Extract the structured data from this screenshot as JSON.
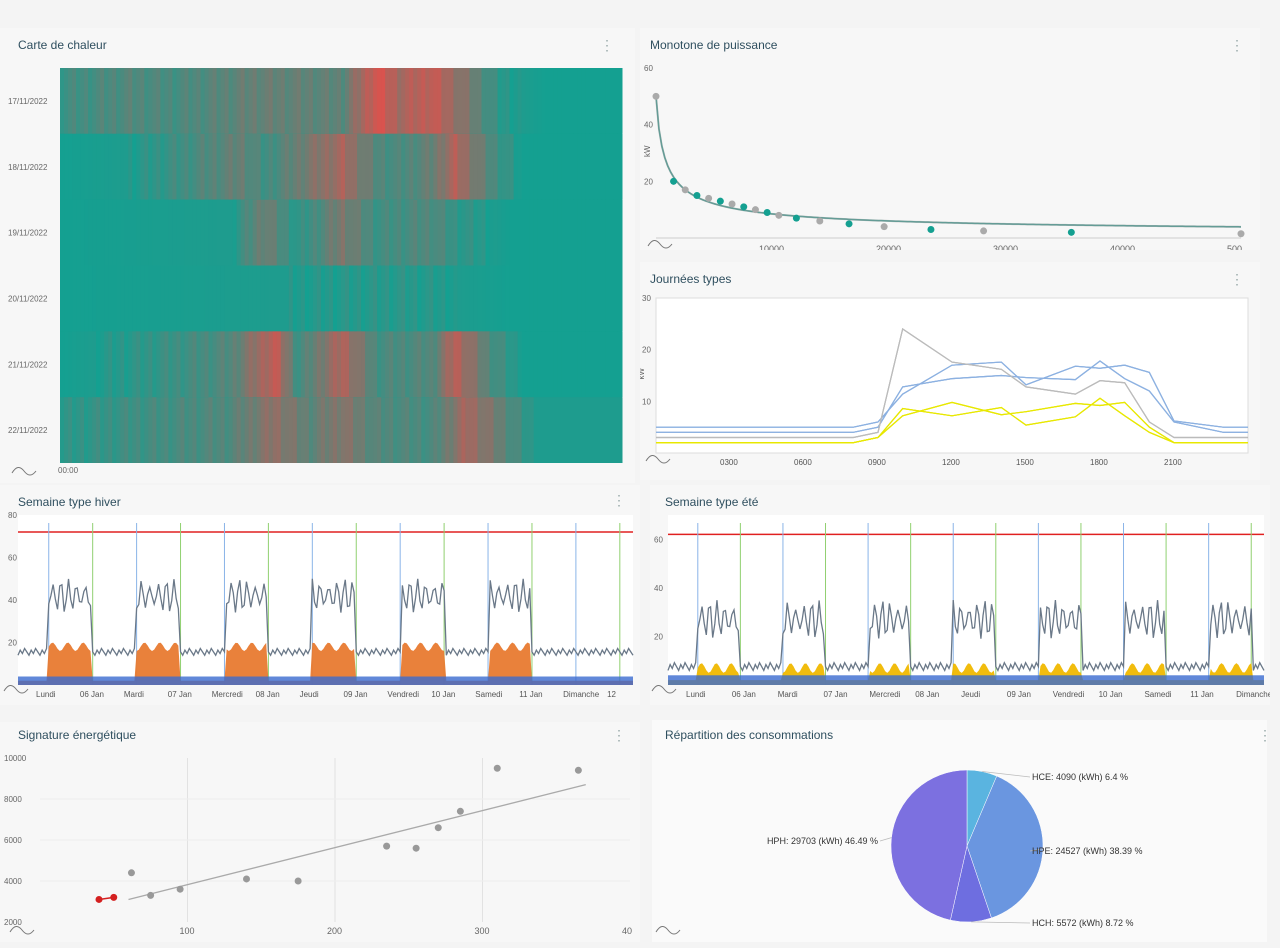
{
  "panels": {
    "heatmap": {
      "title": "Carte de chaleur",
      "menu": "⋮",
      "dates": [
        "17/11/2022",
        "18/11/2022",
        "19/11/2022",
        "20/11/2022",
        "21/11/2022",
        "22/11/2022"
      ],
      "xlabel_start": "00:00",
      "rows_heat": [
        [
          [
            0,
            0.2
          ],
          [
            0.12,
            0.3
          ],
          [
            0.2,
            0.25
          ],
          [
            0.35,
            0.4
          ],
          [
            0.5,
            0.35
          ],
          [
            0.56,
            0.95
          ],
          [
            0.6,
            0.7
          ],
          [
            0.66,
            0.85
          ],
          [
            0.72,
            0.5
          ],
          [
            0.78,
            0.1
          ],
          [
            0.86,
            0.0
          ]
        ],
        [
          [
            0,
            0.0
          ],
          [
            0.12,
            0.05
          ],
          [
            0.32,
            0.4
          ],
          [
            0.36,
            0.2
          ],
          [
            0.5,
            0.7
          ],
          [
            0.56,
            0.3
          ],
          [
            0.6,
            0.25
          ],
          [
            0.66,
            0.4
          ],
          [
            0.7,
            0.75
          ],
          [
            0.76,
            0.3
          ],
          [
            0.82,
            0.0
          ]
        ],
        [
          [
            0,
            0.0
          ],
          [
            0.3,
            0.05
          ],
          [
            0.36,
            0.45
          ],
          [
            0.42,
            0.1
          ],
          [
            0.5,
            0.5
          ],
          [
            0.56,
            0.2
          ],
          [
            0.66,
            0.3
          ],
          [
            0.7,
            0.15
          ],
          [
            0.8,
            0.0
          ]
        ],
        [
          [
            0,
            0.0
          ],
          [
            0.4,
            0.05
          ],
          [
            0.6,
            0.1
          ],
          [
            0.8,
            0.0
          ]
        ],
        [
          [
            0,
            0.0
          ],
          [
            0.12,
            0.1
          ],
          [
            0.3,
            0.3
          ],
          [
            0.38,
            0.85
          ],
          [
            0.42,
            0.2
          ],
          [
            0.5,
            0.75
          ],
          [
            0.56,
            0.25
          ],
          [
            0.66,
            0.3
          ],
          [
            0.7,
            0.8
          ],
          [
            0.76,
            0.3
          ],
          [
            0.82,
            0.0
          ]
        ],
        [
          [
            0,
            0.1
          ],
          [
            0.12,
            0.2
          ],
          [
            0.3,
            0.3
          ],
          [
            0.38,
            0.6
          ],
          [
            0.44,
            0.35
          ],
          [
            0.5,
            0.55
          ],
          [
            0.56,
            0.3
          ],
          [
            0.66,
            0.25
          ],
          [
            0.72,
            0.7
          ],
          [
            0.78,
            0.4
          ],
          [
            0.84,
            0.05
          ]
        ]
      ]
    },
    "monotone": {
      "title": "Monotone de puissance",
      "menu": "⋮",
      "ylabel": "kW",
      "yticks": [
        "60",
        "40",
        "20"
      ],
      "xticks": [
        "10000",
        "20000",
        "30000",
        "40000",
        "500"
      ]
    },
    "journees": {
      "title": "Journées types",
      "menu": "⋮",
      "ylabel": "kW",
      "yticks": [
        "30",
        "20",
        "10"
      ],
      "xticks": [
        "0300",
        "0600",
        "0900",
        "1200",
        "1500",
        "1800",
        "2100"
      ]
    },
    "hiver": {
      "title": "Semaine type hiver",
      "menu": "⋮",
      "ylabel": "kW",
      "yticks": [
        "80",
        "60",
        "40",
        "20"
      ],
      "xticks": [
        "Lundi",
        "06 Jan",
        "Mardi",
        "07 Jan",
        "Mercredi",
        "08 Jan",
        "Jeudi",
        "09 Jan",
        "Vendredi",
        "10 Jan",
        "Samedi",
        "11 Jan",
        "Dimanche",
        "12"
      ]
    },
    "ete": {
      "title": "Semaine type été",
      "menu": "⋮",
      "ylabel": "kW",
      "yticks": [
        "60",
        "40",
        "20"
      ],
      "xticks": [
        "Lundi",
        "06 Jan",
        "Mardi",
        "07 Jan",
        "Mercredi",
        "08 Jan",
        "Jeudi",
        "09 Jan",
        "Vendredi",
        "10 Jan",
        "Samedi",
        "11 Jan",
        "Dimanche"
      ]
    },
    "signature": {
      "title": "Signature énergétique",
      "menu": "⋮",
      "yticks": [
        "10000",
        "8000",
        "6000",
        "4000",
        "2000"
      ],
      "xticks": [
        "100",
        "200",
        "300",
        "40"
      ]
    },
    "repartition": {
      "title": "Répartition des consommations",
      "menu": "⋮"
    }
  },
  "chart_data": [
    {
      "type": "heatmap",
      "title": "Carte de chaleur",
      "rows": [
        "17/11/2022",
        "18/11/2022",
        "19/11/2022",
        "20/11/2022",
        "21/11/2022",
        "22/11/2022"
      ]
    },
    {
      "type": "scatter",
      "title": "Monotone de puissance",
      "ylabel": "kW",
      "xlim": [
        0,
        50000
      ],
      "ylim": [
        0,
        60
      ],
      "x": [
        0,
        1500,
        2500,
        3500,
        4500,
        5500,
        6500,
        7500,
        8500,
        9500,
        10500,
        12000,
        14000,
        16500,
        19500,
        23500,
        28000,
        35500,
        50000
      ],
      "y": [
        50,
        20,
        17,
        15,
        14,
        13,
        12,
        11,
        10,
        9,
        8,
        7,
        6,
        5,
        4,
        3,
        2.5,
        2,
        1.5
      ]
    },
    {
      "type": "line",
      "title": "Journées types",
      "ylabel": "kW",
      "ylim": [
        0,
        30
      ],
      "x": [
        0,
        3,
        6,
        8,
        9,
        10,
        12,
        14,
        15,
        17,
        18,
        19,
        20,
        21,
        23,
        24
      ],
      "series": [
        {
          "color": "#8cb0e0",
          "values": [
            5,
            5,
            5,
            5,
            6,
            13,
            17,
            16,
            14,
            16,
            18,
            17,
            14,
            7,
            5,
            5
          ]
        },
        {
          "color": "#8cb0e0",
          "values": [
            4,
            4,
            4,
            4,
            5,
            12,
            16,
            15,
            13,
            15,
            17,
            16,
            12,
            6,
            4,
            4
          ]
        },
        {
          "color": "#e8e800",
          "values": [
            2,
            2,
            2,
            2,
            3,
            8,
            9,
            9,
            8,
            8,
            10,
            9,
            5,
            2,
            2,
            2
          ]
        },
        {
          "color": "#e8e800",
          "values": [
            2,
            2,
            2,
            2,
            3,
            7,
            8,
            8,
            7,
            7,
            9,
            8,
            4,
            2,
            2,
            2
          ]
        },
        {
          "color": "#bbbbbb",
          "values": [
            3,
            3,
            3,
            3,
            4,
            24,
            16,
            17,
            12,
            13,
            14,
            12,
            6,
            3,
            3,
            3
          ]
        }
      ]
    },
    {
      "type": "area",
      "title": "Semaine type hiver",
      "ylabel": "kW",
      "ylim": [
        0,
        80
      ],
      "threshold": 72
    },
    {
      "type": "area",
      "title": "Semaine type été",
      "ylabel": "kW",
      "ylim": [
        0,
        70
      ],
      "threshold": 62
    },
    {
      "type": "scatter",
      "title": "Signature énergétique",
      "xlim": [
        0,
        400
      ],
      "ylim": [
        2000,
        10000
      ],
      "x": [
        40,
        50,
        62,
        75,
        95,
        140,
        175,
        235,
        255,
        270,
        285,
        310,
        365
      ],
      "y": [
        3100,
        3200,
        4400,
        3300,
        3600,
        4100,
        4000,
        5700,
        5600,
        6600,
        7400,
        9500,
        9400
      ],
      "trend": [
        [
          60,
          3100
        ],
        [
          370,
          8700
        ]
      ]
    },
    {
      "type": "pie",
      "title": "Répartition des consommations",
      "labels": [
        "HCE: 4090 (kWh) 6.4 %",
        "HPE: 24527 (kWh) 38.39 %",
        "HCH: 5572 (kWh) 8.72 %",
        "HPH: 29703 (kWh) 46.49 %"
      ],
      "values": [
        6.4,
        38.39,
        8.72,
        46.49
      ],
      "colors": [
        "#5ab4e0",
        "#6a96e0",
        "#6e6ee0",
        "#7c70e0"
      ]
    }
  ]
}
